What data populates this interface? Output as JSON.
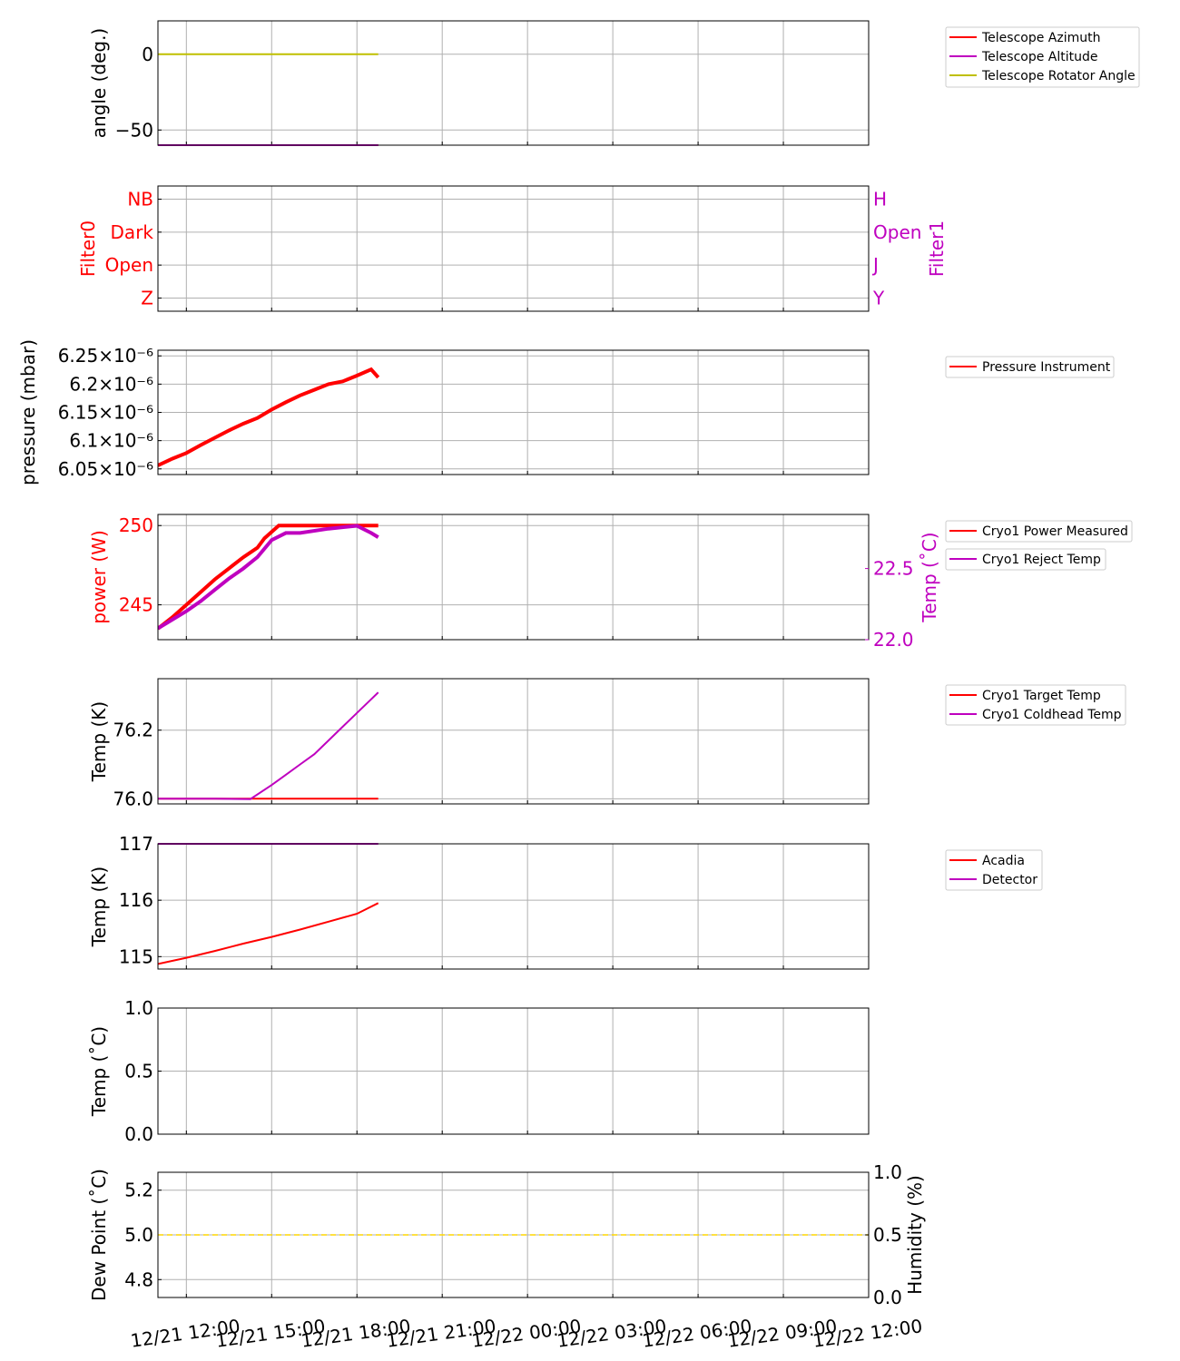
{
  "x_axis": {
    "min": "2022-12-21T11:00",
    "max": "2022-12-22T12:00",
    "tick_times": [
      "2022-12-21T12:00",
      "2022-12-21T15:00",
      "2022-12-21T18:00",
      "2022-12-21T21:00",
      "2022-12-22T00:00",
      "2022-12-22T03:00",
      "2022-12-22T06:00",
      "2022-12-22T09:00",
      "2022-12-22T12:00"
    ],
    "tick_labels": [
      "12/21 12:00",
      "12/21 15:00",
      "12/21 18:00",
      "12/21 21:00",
      "12/22 00:00",
      "12/22 03:00",
      "12/22 06:00",
      "12/22 09:00",
      "12/22 12:00"
    ]
  },
  "colors": {
    "red": "#ff0000",
    "magenta": "#bf00bf",
    "olive": "#bfbf00",
    "gold": "#ffd700",
    "grid": "#b0b0b0"
  },
  "chart_data": [
    {
      "type": "line",
      "ylabel": "angle (deg.)",
      "ylim": [
        -60,
        22
      ],
      "yticks": [
        0,
        -50
      ],
      "ytick_labels": [
        "0",
        "−50"
      ],
      "grid": true,
      "legend": "top-right",
      "series": [
        {
          "name": "Telescope Azimuth",
          "color": "#ff0000",
          "x": [
            "2022-12-21T11:00",
            "2022-12-21T18:45"
          ],
          "y": [
            -60,
            -60
          ]
        },
        {
          "name": "Telescope Altitude",
          "color": "#bf00bf",
          "x": [
            "2022-12-21T11:00",
            "2022-12-21T18:45"
          ],
          "y": [
            -60,
            -60
          ]
        },
        {
          "name": "Telescope Rotator Angle",
          "color": "#bfbf00",
          "x": [
            "2022-12-21T11:00",
            "2022-12-21T18:45"
          ],
          "y": [
            0,
            0
          ]
        }
      ]
    },
    {
      "type": "line",
      "ylabel": "Filter0",
      "ylabel_right": "Filter1",
      "ylim": [
        0.6,
        4.4
      ],
      "yticks": [
        1,
        2,
        3,
        4
      ],
      "ytick_labels": [
        "Z",
        "Open",
        "Dark",
        "NB"
      ],
      "ytick_labels_right": [
        "Y",
        "J",
        "Open",
        "H"
      ],
      "grid": true,
      "series": []
    },
    {
      "type": "line",
      "ylabel": "pressure (mbar)",
      "ylim": [
        6.04e-06,
        6.26e-06
      ],
      "yticks": [
        6.05e-06,
        6.1e-06,
        6.15e-06,
        6.2e-06,
        6.25e-06
      ],
      "ytick_labels": [
        "6.05×10⁻⁶",
        "6.1×10⁻⁶",
        "6.15×10⁻⁶",
        "6.2×10⁻⁶",
        "6.25×10⁻⁶"
      ],
      "grid": true,
      "legend": "top-right",
      "series": [
        {
          "name": "Pressure Instrument",
          "color": "#ff0000",
          "x": [
            "2022-12-21T11:00",
            "2022-12-21T11:30",
            "2022-12-21T12:00",
            "2022-12-21T12:30",
            "2022-12-21T13:00",
            "2022-12-21T13:30",
            "2022-12-21T14:00",
            "2022-12-21T14:30",
            "2022-12-21T15:00",
            "2022-12-21T15:30",
            "2022-12-21T16:00",
            "2022-12-21T16:30",
            "2022-12-21T17:00",
            "2022-12-21T17:30",
            "2022-12-21T18:00",
            "2022-12-21T18:30",
            "2022-12-21T18:45"
          ],
          "y": [
            6.056e-06,
            6.068e-06,
            6.078e-06,
            6.092e-06,
            6.105e-06,
            6.118e-06,
            6.13e-06,
            6.14e-06,
            6.155e-06,
            6.168e-06,
            6.18e-06,
            6.19e-06,
            6.2e-06,
            6.205e-06,
            6.215e-06,
            6.226e-06,
            6.212e-06
          ]
        }
      ]
    },
    {
      "type": "line",
      "ylabel": "power (W)",
      "ylabel_right": "Temp (˚C)",
      "ylim": [
        242.8,
        250.7
      ],
      "yticks": [
        245,
        250
      ],
      "ytick_labels": [
        "245",
        "250"
      ],
      "ylim_right": [
        22.0,
        22.88
      ],
      "yticks_right": [
        22.0,
        22.5
      ],
      "ytick_labels_right": [
        "22.0",
        "22.5"
      ],
      "grid": true,
      "legend": "top-right",
      "series": [
        {
          "name": "Cryo1 Power Measured",
          "color": "#ff0000",
          "axis": "left",
          "x": [
            "2022-12-21T11:00",
            "2022-12-21T11:30",
            "2022-12-21T12:00",
            "2022-12-21T12:30",
            "2022-12-21T13:00",
            "2022-12-21T13:30",
            "2022-12-21T14:00",
            "2022-12-21T14:30",
            "2022-12-21T14:45",
            "2022-12-21T15:15",
            "2022-12-21T16:00",
            "2022-12-21T17:00",
            "2022-12-21T18:00",
            "2022-12-21T18:45"
          ],
          "y": [
            243.5,
            244.2,
            245.0,
            245.8,
            246.6,
            247.3,
            248.0,
            248.6,
            249.2,
            250.0,
            250.0,
            250.0,
            250.0,
            250.0
          ]
        },
        {
          "name": "Cryo1 Reject Temp",
          "color": "#bf00bf",
          "axis": "right",
          "x": [
            "2022-12-21T11:00",
            "2022-12-21T11:30",
            "2022-12-21T12:00",
            "2022-12-21T12:30",
            "2022-12-21T13:00",
            "2022-12-21T13:30",
            "2022-12-21T14:00",
            "2022-12-21T14:30",
            "2022-12-21T15:00",
            "2022-12-21T15:30",
            "2022-12-21T16:00",
            "2022-12-21T17:00",
            "2022-12-21T18:00",
            "2022-12-21T18:30",
            "2022-12-21T18:45"
          ],
          "y": [
            22.08,
            22.14,
            22.2,
            22.27,
            22.35,
            22.43,
            22.5,
            22.58,
            22.7,
            22.75,
            22.75,
            22.78,
            22.8,
            22.75,
            22.72
          ]
        }
      ]
    },
    {
      "type": "line",
      "ylabel": "Temp (K)",
      "ylim": [
        75.985,
        76.35
      ],
      "yticks": [
        76.0,
        76.2
      ],
      "ytick_labels": [
        "76.0",
        "76.2"
      ],
      "grid": true,
      "legend": "top-right",
      "series": [
        {
          "name": "Cryo1 Target Temp",
          "color": "#ff0000",
          "x": [
            "2022-12-21T11:00",
            "2022-12-21T18:45"
          ],
          "y": [
            76.0,
            76.0
          ]
        },
        {
          "name": "Cryo1 Coldhead Temp",
          "color": "#bf00bf",
          "x": [
            "2022-12-21T11:00",
            "2022-12-21T13:00",
            "2022-12-21T14:15",
            "2022-12-21T15:00",
            "2022-12-21T15:30",
            "2022-12-21T16:00",
            "2022-12-21T16:30",
            "2022-12-21T17:00",
            "2022-12-21T17:30",
            "2022-12-21T18:00",
            "2022-12-21T18:30",
            "2022-12-21T18:45"
          ],
          "y": [
            76.0,
            76.0,
            75.999,
            76.04,
            76.07,
            76.1,
            76.13,
            76.17,
            76.21,
            76.25,
            76.29,
            76.31
          ]
        }
      ]
    },
    {
      "type": "line",
      "ylabel": "Temp (K)",
      "ylim": [
        114.78,
        117.0
      ],
      "yticks": [
        115,
        116,
        117
      ],
      "ytick_labels": [
        "115",
        "116",
        "117"
      ],
      "grid": true,
      "legend": "top-right",
      "series": [
        {
          "name": "Acadia",
          "color": "#ff0000",
          "x": [
            "2022-12-21T11:00",
            "2022-12-21T12:00",
            "2022-12-21T13:00",
            "2022-12-21T14:00",
            "2022-12-21T15:00",
            "2022-12-21T16:00",
            "2022-12-21T17:00",
            "2022-12-21T18:00",
            "2022-12-21T18:45"
          ],
          "y": [
            114.87,
            114.98,
            115.1,
            115.23,
            115.35,
            115.48,
            115.62,
            115.76,
            115.95
          ]
        },
        {
          "name": "Detector",
          "color": "#bf00bf",
          "x": [
            "2022-12-21T11:00",
            "2022-12-21T18:45"
          ],
          "y": [
            117.0,
            117.0
          ]
        }
      ]
    },
    {
      "type": "line",
      "ylabel": "Temp (˚C)",
      "ylim": [
        0.0,
        1.0
      ],
      "yticks": [
        0.0,
        0.5,
        1.0
      ],
      "ytick_labels": [
        "0.0",
        "0.5",
        "1.0"
      ],
      "grid": true,
      "series": []
    },
    {
      "type": "line",
      "ylabel": "Dew Point (˚C)",
      "ylabel_right": "Humidity (%)",
      "ylim": [
        4.72,
        5.28
      ],
      "yticks": [
        4.8,
        5.0,
        5.2
      ],
      "ytick_labels": [
        "4.8",
        "5.0",
        "5.2"
      ],
      "ylim_right": [
        0.0,
        1.0
      ],
      "yticks_right": [
        0.0,
        0.5,
        1.0
      ],
      "ytick_labels_right": [
        "0.0",
        "0.5",
        "1.0"
      ],
      "grid": true,
      "series": [
        {
          "color": "#ffd700",
          "axis": "left",
          "dashed": true,
          "x": [
            "2022-12-21T11:00",
            "2022-12-22T12:00"
          ],
          "y": [
            5.0,
            5.0
          ]
        }
      ]
    }
  ]
}
